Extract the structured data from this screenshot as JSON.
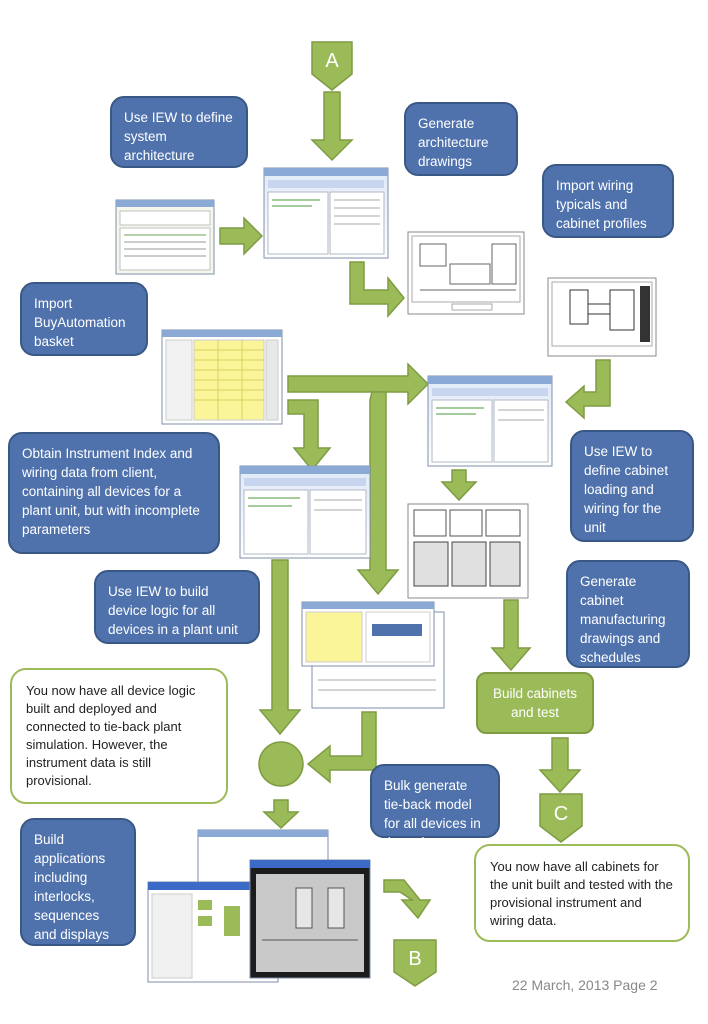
{
  "connectors": {
    "a": "A",
    "b": "B",
    "c": "C"
  },
  "callouts": {
    "define_architecture": "Use IEW to define system architecture",
    "generate_drawings": "Generate architecture drawings",
    "import_wiring": "Import wiring typicals and cabinet profiles",
    "import_basket": "Import BuyAutomation basket",
    "obtain_index": "Obtain Instrument Index and wiring data from client, containing all devices for a plant unit, but with incomplete parameters",
    "cabinet_loading": "Use IEW to define cabinet loading and wiring for the unit",
    "device_logic": "Use IEW to build device logic for all devices in a plant unit",
    "cabinet_drawings": "Generate cabinet manufacturing drawings and schedules",
    "bulk_generate": "Bulk generate tie-back model for all devices in the unit",
    "build_applications": "Build applications including interlocks, sequences and displays"
  },
  "boxes": {
    "build_cabinets": "Build cabinets and test"
  },
  "notes": {
    "device_logic_done": "You now have all device logic built and deployed and connected to tie-back plant simulation. However, the instrument data is still provisional.",
    "cabinets_done": "You now have all cabinets for the unit built and tested with the provisional instrument and wiring data."
  },
  "footer": "22 March, 2013 Page 2",
  "colors": {
    "arrow": "#9bbb59",
    "callout": "#4f72ad",
    "note_border": "#9dbb59"
  }
}
